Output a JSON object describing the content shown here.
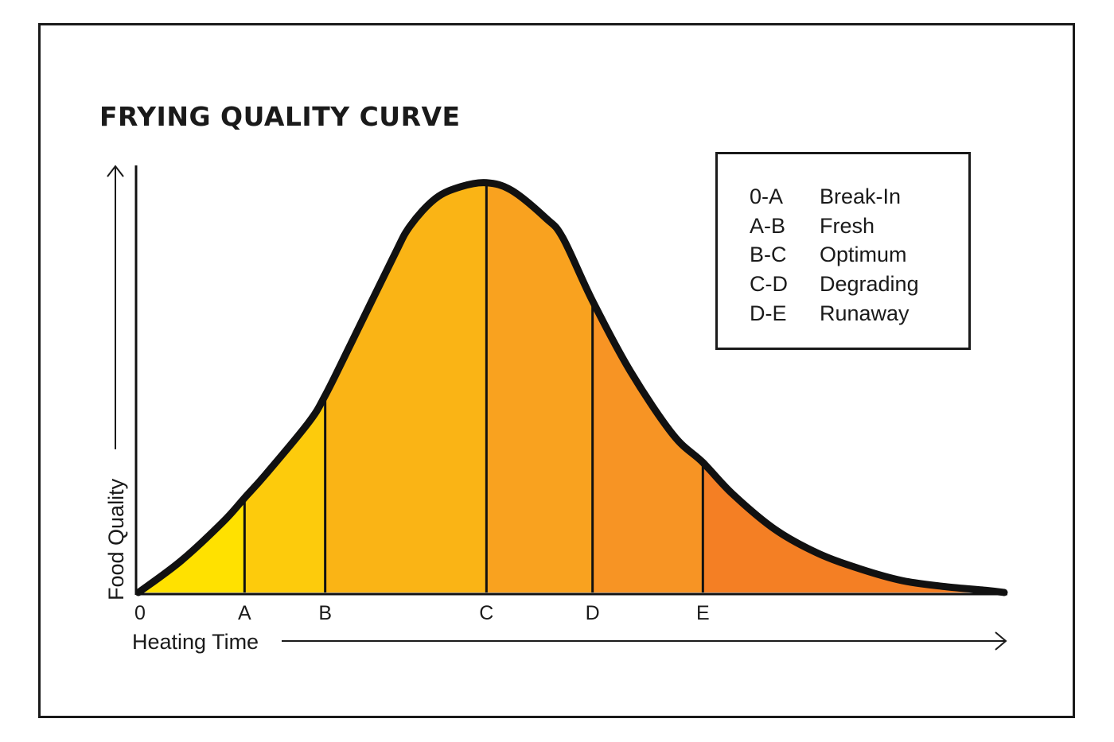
{
  "chart_data": {
    "type": "area",
    "title": "FRYING QUALITY CURVE",
    "xlabel": "Heating Time",
    "ylabel": "Food Quality",
    "x_ticks": [
      "0",
      "A",
      "B",
      "C",
      "D",
      "E"
    ],
    "x_tick_positions": [
      0,
      1.25,
      2.2,
      4.1,
      5.35,
      6.65
    ],
    "xlim": [
      0,
      10.2
    ],
    "ylim": [
      0,
      1.1
    ],
    "curve": {
      "x": [
        0,
        0.5,
        1.0,
        1.25,
        1.5,
        2.0,
        2.2,
        2.5,
        3.0,
        3.2,
        3.5,
        3.8,
        4.1,
        4.4,
        4.8,
        5.0,
        5.35,
        5.8,
        6.3,
        6.65,
        7.0,
        7.5,
        8.0,
        8.5,
        9.0,
        9.5,
        10.0,
        10.2
      ],
      "y": [
        0,
        0.08,
        0.18,
        0.24,
        0.3,
        0.43,
        0.5,
        0.63,
        0.85,
        0.93,
        1.0,
        1.03,
        1.04,
        1.02,
        0.95,
        0.9,
        0.74,
        0.56,
        0.4,
        0.33,
        0.25,
        0.16,
        0.1,
        0.06,
        0.03,
        0.015,
        0.005,
        0
      ]
    },
    "regions": [
      {
        "range": "0-A",
        "name": "Break-In",
        "color": "#FFE100"
      },
      {
        "range": "A-B",
        "name": "Fresh",
        "color": "#FDCB0C"
      },
      {
        "range": "B-C",
        "name": "Optimum",
        "color": "#FAB415"
      },
      {
        "range": "C-D",
        "name": "Degrading",
        "color": "#F9A21F"
      },
      {
        "range": "D-E",
        "name": "Runaway",
        "color": "#F79424"
      },
      {
        "range": "",
        "name": "",
        "color": "#F47F24"
      }
    ],
    "legend_position": "top-right",
    "grid": false
  }
}
